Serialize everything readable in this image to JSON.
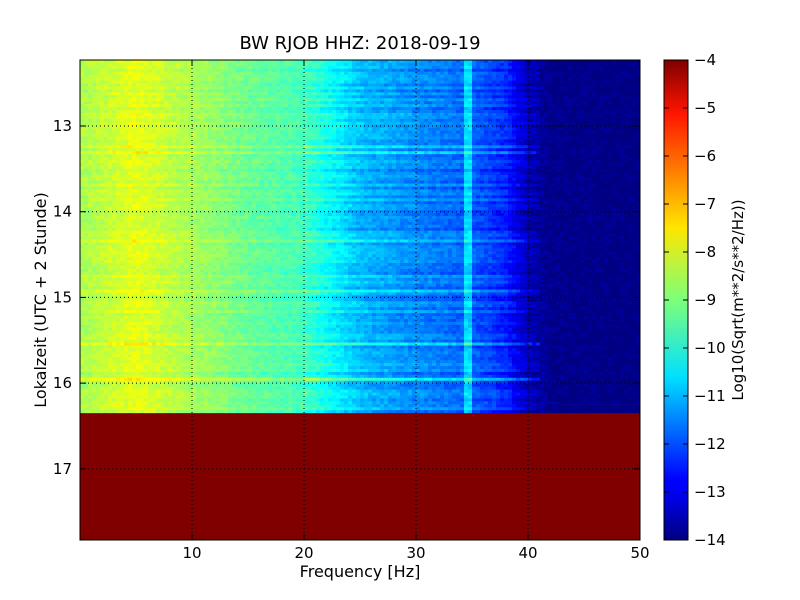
{
  "chart_data": {
    "type": "heatmap",
    "title": "BW RJOB HHZ: 2018-09-19",
    "xlabel": "Frequency [Hz]",
    "ylabel": "Lokalzeit (UTC + 2 Stunde)",
    "colorbar_label": "Log10(Sqrt(m**2/s**2/Hz))",
    "xlim": [
      0,
      50
    ],
    "ylim": [
      12.23,
      17.83
    ],
    "y_inverted": true,
    "x_ticks": [
      10,
      20,
      30,
      40,
      50
    ],
    "x_tick_labels": [
      "10",
      "20",
      "30",
      "40",
      "50"
    ],
    "y_ticks": [
      13,
      14,
      15,
      16,
      17
    ],
    "y_tick_labels": [
      "13",
      "14",
      "15",
      "16",
      "17"
    ],
    "grid": true,
    "colormap": "jet",
    "clim": [
      -14,
      -4
    ],
    "colorbar_ticks": [
      -4,
      -5,
      -6,
      -7,
      -8,
      -9,
      -10,
      -11,
      -12,
      -13,
      -14
    ],
    "colorbar_tick_labels": [
      "−4",
      "−5",
      "−6",
      "−7",
      "−8",
      "−9",
      "−10",
      "−11",
      "−12",
      "−13",
      "−14"
    ],
    "data_end_time": 16.35,
    "no_data_value": -4,
    "spectrum_profile": [
      {
        "f": 0,
        "v": -8.6
      },
      {
        "f": 5,
        "v": -8.0
      },
      {
        "f": 10,
        "v": -8.6
      },
      {
        "f": 15,
        "v": -9.2
      },
      {
        "f": 20,
        "v": -9.6
      },
      {
        "f": 25,
        "v": -10.9
      },
      {
        "f": 30,
        "v": -11.4
      },
      {
        "f": 35,
        "v": -11.8
      },
      {
        "f": 38,
        "v": -12.4
      },
      {
        "f": 40,
        "v": -13.4
      },
      {
        "f": 42,
        "v": -13.9
      },
      {
        "f": 50,
        "v": -14.0
      }
    ],
    "tone_frequency_hz": 34.5
  }
}
